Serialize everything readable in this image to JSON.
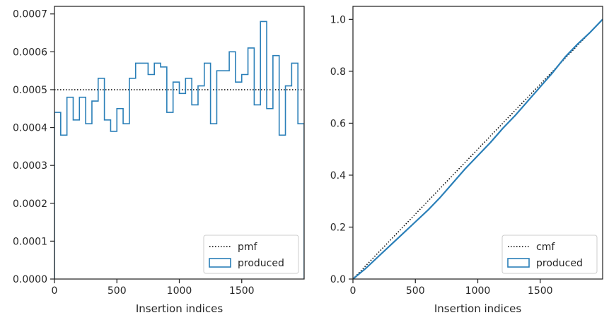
{
  "colors": {
    "produced": "#2a7fb8",
    "reference": "#000000",
    "axes": "#262626"
  },
  "chart_data": [
    {
      "type": "histogram",
      "xlabel": "Insertion indices",
      "ylabel": "",
      "xlim": [
        0,
        2000
      ],
      "ylim": [
        0,
        0.00072
      ],
      "x_ticks": [
        0,
        500,
        1000,
        1500
      ],
      "x_tick_labels": [
        "0",
        "500",
        "1000",
        "1500"
      ],
      "y_ticks": [
        0,
        0.0001,
        0.0002,
        0.0003,
        0.0004,
        0.0005,
        0.0006,
        0.0007
      ],
      "y_tick_labels": [
        "0.0000",
        "0.0001",
        "0.0002",
        "0.0003",
        "0.0004",
        "0.0005",
        "0.0006",
        "0.0007"
      ],
      "grid": false,
      "legend_position": "bottom-right",
      "series": [
        {
          "name": "pmf",
          "style": "dotted",
          "x": [
            0,
            2000
          ],
          "y": [
            0.0005,
            0.0005
          ]
        },
        {
          "name": "produced",
          "style": "step",
          "bin_edges": [
            0,
            50,
            100,
            150,
            200,
            250,
            300,
            350,
            400,
            450,
            500,
            550,
            600,
            650,
            700,
            750,
            800,
            850,
            900,
            950,
            1000,
            1050,
            1100,
            1150,
            1200,
            1250,
            1300,
            1350,
            1400,
            1450,
            1500,
            1550,
            1600,
            1650,
            1700,
            1750,
            1800,
            1850,
            1900,
            1950,
            2000
          ],
          "values": [
            0.00044,
            0.00038,
            0.00048,
            0.00042,
            0.00048,
            0.00041,
            0.00047,
            0.00053,
            0.00042,
            0.00039,
            0.00045,
            0.00041,
            0.00053,
            0.00057,
            0.00057,
            0.00054,
            0.00057,
            0.00056,
            0.00044,
            0.00052,
            0.00049,
            0.00053,
            0.00046,
            0.00051,
            0.00057,
            0.00041,
            0.00055,
            0.00055,
            0.0006,
            0.00052,
            0.00054,
            0.00061,
            0.00046,
            0.00068,
            0.00045,
            0.00059,
            0.00038,
            0.00051,
            0.00057,
            0.00041
          ]
        }
      ]
    },
    {
      "type": "line",
      "xlabel": "Insertion indices",
      "ylabel": "",
      "xlim": [
        0,
        2000
      ],
      "ylim": [
        0,
        1.05
      ],
      "x_ticks": [
        0,
        500,
        1000,
        1500
      ],
      "x_tick_labels": [
        "0",
        "500",
        "1000",
        "1500"
      ],
      "y_ticks": [
        0,
        0.2,
        0.4,
        0.6,
        0.8,
        1.0
      ],
      "y_tick_labels": [
        "0.0",
        "0.2",
        "0.4",
        "0.6",
        "0.8",
        "1.0"
      ],
      "grid": false,
      "legend_position": "bottom-right",
      "series": [
        {
          "name": "cmf",
          "style": "dotted",
          "x": [
            0,
            2000
          ],
          "y": [
            0,
            1.0
          ]
        },
        {
          "name": "produced",
          "style": "solid",
          "x": [
            0,
            100,
            200,
            300,
            400,
            500,
            600,
            700,
            800,
            900,
            1000,
            1100,
            1200,
            1300,
            1400,
            1500,
            1600,
            1700,
            1800,
            1900,
            2000
          ],
          "y": [
            0,
            0.04,
            0.085,
            0.13,
            0.175,
            0.22,
            0.265,
            0.315,
            0.37,
            0.425,
            0.475,
            0.525,
            0.58,
            0.63,
            0.685,
            0.74,
            0.795,
            0.855,
            0.905,
            0.95,
            1.0
          ]
        }
      ]
    }
  ]
}
